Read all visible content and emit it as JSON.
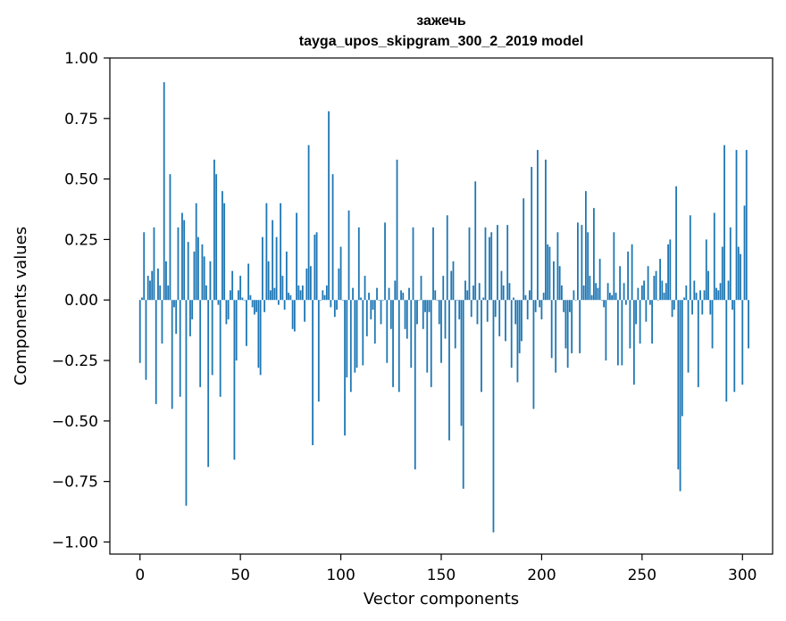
{
  "chart_data": {
    "type": "bar",
    "title": "зажечь",
    "subtitle": "tayga_upos_skipgram_300_2_2019 model",
    "xlabel": "Vector components",
    "ylabel": "Components values",
    "xlim": [
      -15,
      315
    ],
    "ylim": [
      -1.05,
      1.0
    ],
    "xticks": [
      0,
      50,
      100,
      150,
      200,
      250,
      300
    ],
    "xtick_labels": [
      "0",
      "50",
      "100",
      "150",
      "200",
      "250",
      "300"
    ],
    "yticks": [
      1.0,
      0.75,
      0.5,
      0.25,
      0.0,
      -0.25,
      -0.5,
      -0.75,
      -1.0
    ],
    "ytick_labels": [
      "1.00",
      "0.75",
      "0.50",
      "0.25",
      "0.00",
      "−0.25",
      "−0.50",
      "−0.75",
      "−1.00"
    ],
    "grid": false,
    "bar_color": "#1f77b4",
    "values": [
      -0.26,
      0.01,
      0.28,
      -0.33,
      0.1,
      0.08,
      0.12,
      0.3,
      -0.43,
      0.13,
      0.06,
      -0.18,
      0.9,
      0.16,
      0.06,
      0.52,
      -0.45,
      -0.03,
      -0.14,
      0.3,
      -0.4,
      0.36,
      0.33,
      -0.85,
      0.24,
      -0.15,
      -0.08,
      0.2,
      0.4,
      0.26,
      -0.36,
      0.23,
      0.18,
      0.06,
      -0.69,
      0.16,
      -0.31,
      0.58,
      0.52,
      -0.02,
      -0.4,
      0.45,
      0.4,
      -0.1,
      -0.08,
      0.04,
      0.12,
      -0.66,
      -0.25,
      0.04,
      0.1,
      0.01,
      0.0,
      -0.19,
      0.15,
      0.02,
      -0.03,
      -0.06,
      -0.05,
      -0.28,
      -0.31,
      0.26,
      -0.05,
      0.4,
      0.16,
      0.04,
      0.33,
      0.05,
      0.26,
      -0.02,
      0.4,
      0.1,
      -0.04,
      0.2,
      0.03,
      0.02,
      -0.12,
      -0.13,
      0.36,
      0.06,
      0.04,
      0.06,
      -0.09,
      0.13,
      0.64,
      0.14,
      -0.6,
      0.27,
      0.28,
      -0.42,
      0.0,
      0.04,
      0.02,
      0.06,
      0.78,
      -0.03,
      0.52,
      -0.07,
      -0.04,
      0.13,
      0.22,
      0.0,
      -0.56,
      -0.32,
      0.37,
      -0.38,
      0.05,
      -0.3,
      -0.28,
      0.3,
      0.01,
      -0.27,
      0.1,
      -0.15,
      0.03,
      -0.08,
      -0.04,
      -0.18,
      0.05,
      0.0,
      -0.1,
      0.0,
      0.32,
      -0.26,
      0.05,
      -0.12,
      -0.36,
      0.08,
      0.58,
      -0.38,
      0.04,
      0.03,
      -0.12,
      -0.16,
      0.05,
      -0.28,
      0.3,
      -0.7,
      -0.1,
      0.0,
      0.1,
      -0.12,
      -0.05,
      -0.3,
      -0.05,
      -0.36,
      0.3,
      0.04,
      0.0,
      -0.1,
      -0.26,
      0.1,
      -0.16,
      0.35,
      -0.58,
      0.12,
      0.16,
      -0.2,
      0.0,
      -0.08,
      -0.52,
      -0.78,
      0.08,
      0.04,
      0.3,
      -0.07,
      0.06,
      0.49,
      -0.1,
      0.07,
      -0.38,
      0.01,
      0.3,
      -0.09,
      0.26,
      0.28,
      -0.96,
      -0.07,
      0.31,
      -0.15,
      0.12,
      0.06,
      -0.17,
      0.31,
      0.07,
      -0.28,
      0.01,
      -0.1,
      -0.34,
      -0.22,
      -0.17,
      0.42,
      0.02,
      -0.08,
      0.04,
      0.55,
      -0.45,
      -0.05,
      0.62,
      -0.03,
      -0.08,
      0.03,
      0.58,
      0.23,
      0.22,
      -0.24,
      0.16,
      -0.3,
      0.28,
      0.14,
      0.06,
      -0.05,
      -0.2,
      -0.28,
      -0.05,
      -0.22,
      0.04,
      0.0,
      0.32,
      -0.22,
      0.31,
      0.06,
      0.45,
      0.28,
      0.1,
      0.02,
      0.38,
      0.07,
      0.05,
      0.17,
      0.0,
      -0.03,
      -0.25,
      0.07,
      0.03,
      0.02,
      0.28,
      0.03,
      -0.27,
      0.14,
      -0.27,
      0.07,
      -0.02,
      0.2,
      -0.2,
      0.23,
      -0.35,
      -0.1,
      0.05,
      -0.18,
      0.06,
      0.08,
      -0.09,
      0.14,
      -0.02,
      -0.18,
      0.1,
      0.12,
      0.0,
      0.17,
      0.08,
      0.03,
      0.07,
      0.23,
      0.25,
      -0.07,
      -0.04,
      0.47,
      -0.7,
      -0.79,
      -0.48,
      0.01,
      0.06,
      -0.3,
      0.35,
      -0.06,
      0.08,
      0.03,
      -0.36,
      0.04,
      -0.06,
      0.04,
      0.25,
      0.12,
      -0.06,
      -0.2,
      0.36,
      0.05,
      0.04,
      0.07,
      0.22,
      0.64,
      -0.42,
      0.08,
      0.3,
      -0.04,
      -0.38,
      0.62,
      0.22,
      0.19,
      -0.35,
      0.39,
      0.62,
      -0.2
    ]
  }
}
